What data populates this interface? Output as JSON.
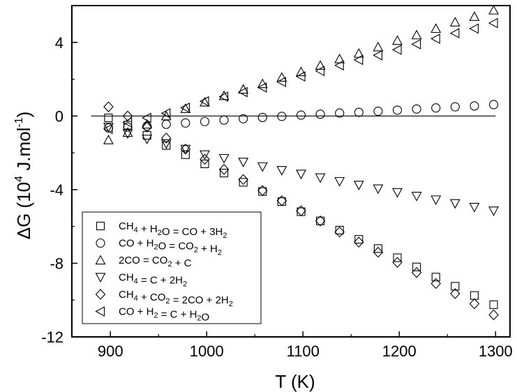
{
  "chart_data": {
    "type": "scatter",
    "xlabel": "T (K)",
    "ylabel_parts": [
      "ΔG (10",
      "4",
      " J.mol",
      "-1",
      ")"
    ],
    "xlim": [
      860,
      1315
    ],
    "ylim": [
      -12,
      6
    ],
    "x_ticks": [
      900,
      1000,
      1100,
      1200,
      1300
    ],
    "y_ticks": [
      -12,
      -8,
      -4,
      0,
      4
    ],
    "y_tick_labels": [
      "-12",
      "-8",
      "-4",
      "0",
      "4"
    ],
    "zero_line": [
      880,
      1300
    ],
    "grid": false,
    "legend_position": "bottom-left",
    "x": [
      898,
      918,
      938,
      958,
      978,
      998,
      1018,
      1038,
      1058,
      1078,
      1098,
      1118,
      1138,
      1158,
      1178,
      1198,
      1218,
      1238,
      1258,
      1278,
      1298
    ],
    "series": [
      {
        "marker": "square",
        "label": [
          [
            "CH",
            ""
          ],
          [
            "4",
            "sub"
          ],
          [
            " + H",
            ""
          ],
          [
            "2",
            "sub"
          ],
          [
            "O = CO + 3H",
            ""
          ],
          [
            "2",
            "sub"
          ]
        ],
        "values": [
          -0.1,
          -0.5,
          -1.05,
          -1.6,
          -2.1,
          -2.6,
          -3.1,
          -3.6,
          -4.1,
          -4.65,
          -5.2,
          -5.7,
          -6.2,
          -6.7,
          -7.2,
          -7.7,
          -8.2,
          -8.75,
          -9.25,
          -9.75,
          -10.25
        ]
      },
      {
        "marker": "circle",
        "label": [
          [
            "CO + H",
            ""
          ],
          [
            "2",
            "sub"
          ],
          [
            "O = CO",
            ""
          ],
          [
            "2",
            "sub"
          ],
          [
            " + H",
            ""
          ],
          [
            "2",
            "sub"
          ]
        ],
        "values": [
          -0.65,
          -0.6,
          -0.55,
          -0.45,
          -0.38,
          -0.3,
          -0.22,
          -0.15,
          -0.08,
          -0.02,
          0.05,
          0.1,
          0.16,
          0.2,
          0.26,
          0.32,
          0.38,
          0.44,
          0.5,
          0.55,
          0.62
        ]
      },
      {
        "marker": "triangle-up",
        "label": [
          [
            "2CO = CO",
            ""
          ],
          [
            "2",
            "sub"
          ],
          [
            " + C",
            ""
          ]
        ],
        "values": [
          -1.3,
          -0.9,
          -0.45,
          0.0,
          0.4,
          0.75,
          1.1,
          1.45,
          1.75,
          2.1,
          2.4,
          2.75,
          3.1,
          3.4,
          3.75,
          4.1,
          4.4,
          4.75,
          5.1,
          5.4,
          5.75
        ]
      },
      {
        "marker": "triangle-down",
        "label": [
          [
            "CH",
            ""
          ],
          [
            "4",
            "sub"
          ],
          [
            " = C + 2H",
            ""
          ],
          [
            "2",
            "sub"
          ]
        ],
        "values": [
          -0.6,
          -0.95,
          -1.25,
          -1.5,
          -1.8,
          -2.1,
          -2.3,
          -2.5,
          -2.75,
          -2.95,
          -3.15,
          -3.35,
          -3.55,
          -3.75,
          -3.95,
          -4.15,
          -4.35,
          -4.55,
          -4.75,
          -4.95,
          -5.15
        ]
      },
      {
        "marker": "diamond",
        "label": [
          [
            "CH",
            ""
          ],
          [
            "4",
            "sub"
          ],
          [
            " + CO",
            ""
          ],
          [
            "2",
            "sub"
          ],
          [
            " = 2CO + 2H",
            ""
          ],
          [
            "2",
            "sub"
          ]
        ],
        "values": [
          0.5,
          0.0,
          -0.6,
          -1.2,
          -1.8,
          -2.35,
          -2.9,
          -3.45,
          -4.05,
          -4.6,
          -5.15,
          -5.7,
          -6.3,
          -6.85,
          -7.4,
          -7.95,
          -8.5,
          -9.1,
          -9.65,
          -10.2,
          -10.8
        ]
      },
      {
        "marker": "triangle-left",
        "label": [
          [
            "CO + H",
            ""
          ],
          [
            "2",
            "sub"
          ],
          [
            " = C + H",
            ""
          ],
          [
            "2",
            "sub"
          ],
          [
            "O",
            ""
          ]
        ],
        "values": [
          -0.7,
          -0.35,
          -0.1,
          0.15,
          0.45,
          0.8,
          1.05,
          1.3,
          1.55,
          1.85,
          2.15,
          2.45,
          2.75,
          3.05,
          3.3,
          3.6,
          3.9,
          4.2,
          4.5,
          4.75,
          5.05
        ]
      }
    ]
  }
}
